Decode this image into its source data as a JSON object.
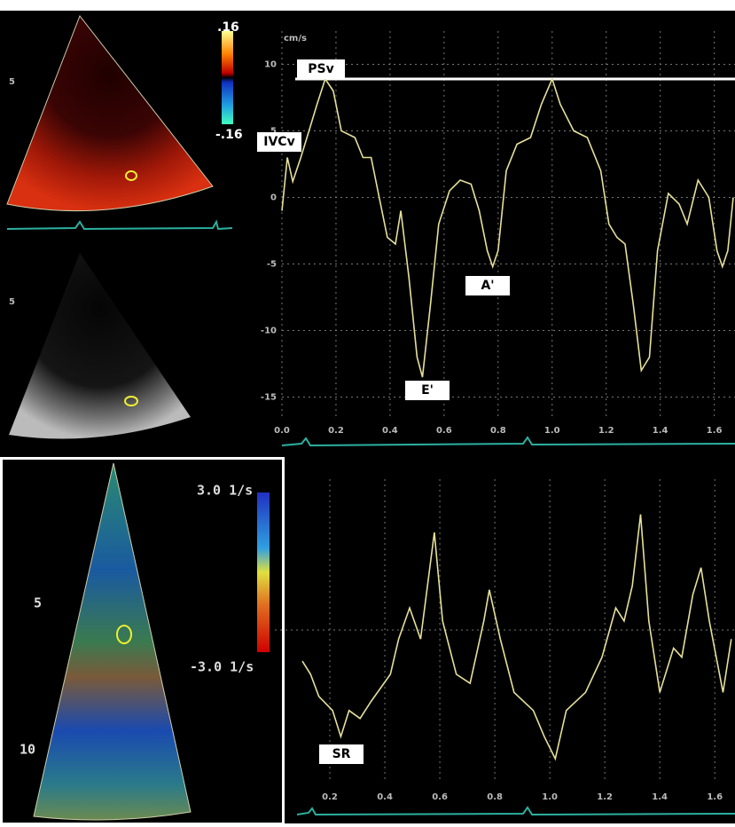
{
  "top_left": {
    "depth_label": "5",
    "scale_max": ".16",
    "scale_min": "-.16"
  },
  "mid_left": {
    "depth_label": "5"
  },
  "bottom_left": {
    "depth_labels": [
      "5",
      "10"
    ],
    "scale_max": "3.0 1/s",
    "scale_min": "-3.0 1/s"
  },
  "chart_data": [
    {
      "type": "line",
      "y_label": "cm/s",
      "color": "#e6e09a",
      "x": [
        0.0,
        0.02,
        0.04,
        0.07,
        0.1,
        0.13,
        0.16,
        0.19,
        0.22,
        0.27,
        0.3,
        0.33,
        0.36,
        0.39,
        0.42,
        0.44,
        0.47,
        0.5,
        0.52,
        0.55,
        0.58,
        0.62,
        0.66,
        0.7,
        0.73,
        0.76,
        0.78,
        0.8,
        0.83,
        0.87,
        0.92,
        0.96,
        1.0,
        1.03,
        1.08,
        1.13,
        1.18,
        1.21,
        1.24,
        1.27,
        1.3,
        1.33,
        1.36,
        1.39,
        1.43,
        1.47,
        1.5,
        1.54,
        1.58,
        1.61,
        1.63,
        1.65,
        1.67
      ],
      "values": [
        -1,
        3,
        1.2,
        3,
        5,
        7,
        8.9,
        8,
        5,
        4.5,
        3,
        3,
        0,
        -3,
        -3.5,
        -1,
        -6,
        -12,
        -13.5,
        -8,
        -2,
        0.5,
        1.3,
        1,
        -1,
        -4,
        -5.2,
        -4,
        2,
        4,
        4.5,
        7,
        8.9,
        7,
        5,
        4.5,
        2,
        -2,
        -3,
        -3.5,
        -8,
        -13,
        -12,
        -4,
        0.3,
        -0.5,
        -2,
        1.3,
        0,
        -4,
        -5.2,
        -4,
        0
      ],
      "xlim": [
        0,
        1.68
      ],
      "ylim": [
        -16.5,
        12.5
      ],
      "xticks": [
        {
          "value": 0,
          "label": "0.0"
        },
        0.2,
        0.4,
        0.6,
        0.8,
        {
          "value": 1,
          "label": "1.0"
        },
        1.2,
        1.4,
        1.6
      ],
      "yticks": [
        10,
        5,
        0,
        -5,
        -10,
        -15
      ],
      "grid": true,
      "reference_line": 8.9,
      "annotations": [
        "PSv",
        "IVCv",
        "E'",
        "A'"
      ]
    },
    {
      "type": "line",
      "color": "#e6e09a",
      "x": [
        0.1,
        0.13,
        0.16,
        0.21,
        0.24,
        0.27,
        0.31,
        0.35,
        0.42,
        0.45,
        0.49,
        0.53,
        0.58,
        0.61,
        0.66,
        0.71,
        0.76,
        0.78,
        0.82,
        0.87,
        0.94,
        0.98,
        1.02,
        1.06,
        1.13,
        1.19,
        1.24,
        1.27,
        1.3,
        1.33,
        1.36,
        1.4,
        1.45,
        1.48,
        1.52,
        1.55,
        1.58,
        1.63,
        1.66
      ],
      "values": [
        -0.31,
        -0.44,
        -0.66,
        -0.8,
        -1.06,
        -0.8,
        -0.88,
        -0.71,
        -0.44,
        -0.09,
        0.22,
        -0.09,
        0.97,
        0.09,
        -0.44,
        -0.53,
        0.09,
        0.4,
        -0.09,
        -0.62,
        -0.8,
        -1.06,
        -1.28,
        -0.8,
        -0.62,
        -0.27,
        0.22,
        0.09,
        0.44,
        1.15,
        0.09,
        -0.62,
        -0.18,
        -0.27,
        0.35,
        0.62,
        0.09,
        -0.62,
        -0.09
      ],
      "xlim": [
        0,
        1.68
      ],
      "ylim": [
        -1.5,
        1.5
      ],
      "xticks": [
        0.2,
        0.4,
        0.6,
        0.8,
        {
          "value": 1,
          "label": "1.0"
        },
        1.2,
        1.4,
        1.6
      ],
      "grid": true,
      "annotations": [
        "SR"
      ]
    }
  ]
}
